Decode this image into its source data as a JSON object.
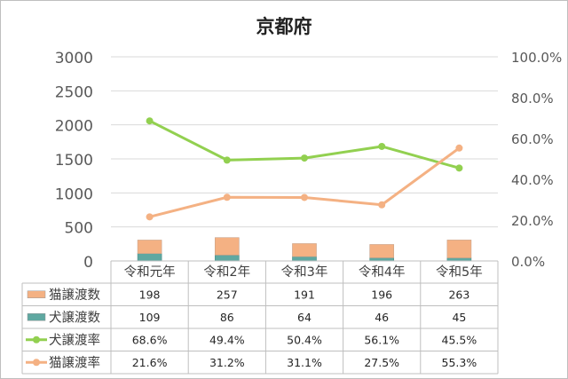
{
  "chart_data": {
    "type": "combo",
    "title": "京都府",
    "categories": [
      "令和元年",
      "令和2年",
      "令和3年",
      "令和4年",
      "令和5年"
    ],
    "series": [
      {
        "name": "猫譲渡数",
        "kind": "stacked-bar",
        "axis": "left",
        "color": "#f4b183",
        "values": [
          198,
          257,
          191,
          196,
          263
        ],
        "labels": [
          "198",
          "257",
          "191",
          "196",
          "263"
        ]
      },
      {
        "name": "犬譲渡数",
        "kind": "stacked-bar",
        "axis": "left",
        "color": "#5fa8a1",
        "values": [
          109,
          86,
          64,
          46,
          45
        ],
        "labels": [
          "109",
          "86",
          "64",
          "46",
          "45"
        ]
      },
      {
        "name": "犬譲渡率",
        "kind": "line",
        "axis": "right",
        "color": "#92d050",
        "values": [
          68.6,
          49.4,
          50.4,
          56.1,
          45.5
        ],
        "labels": [
          "68.6%",
          "49.4%",
          "50.4%",
          "56.1%",
          "45.5%"
        ]
      },
      {
        "name": "猫譲渡率",
        "kind": "line",
        "axis": "right",
        "color": "#f4b183",
        "values": [
          21.6,
          31.2,
          31.1,
          27.5,
          55.3
        ],
        "labels": [
          "21.6%",
          "31.2%",
          "31.1%",
          "27.5%",
          "55.3%"
        ]
      }
    ],
    "y_left": {
      "range": [
        0,
        3000
      ],
      "ticks": [
        "0",
        "500",
        "1000",
        "1500",
        "2000",
        "2500",
        "3000"
      ]
    },
    "y_right": {
      "range": [
        0,
        100
      ],
      "ticks": [
        "0.0%",
        "20.0%",
        "40.0%",
        "60.0%",
        "80.0%",
        "100.0%"
      ]
    },
    "grid": true,
    "legend": "data-table"
  }
}
